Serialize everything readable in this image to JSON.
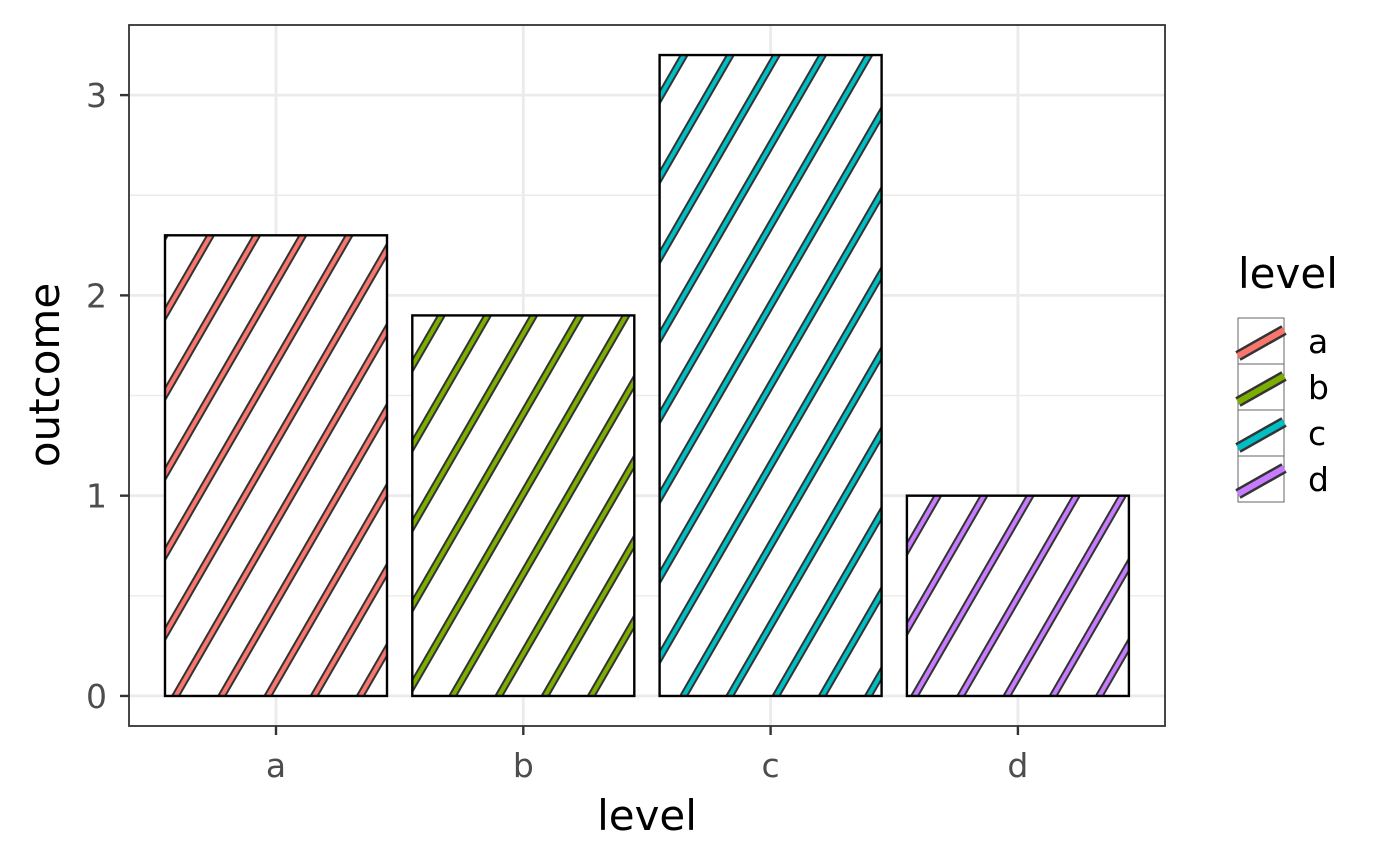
{
  "chart_data": {
    "type": "bar",
    "categories": [
      "a",
      "b",
      "c",
      "d"
    ],
    "values": [
      2.3,
      1.9,
      3.2,
      1.0
    ],
    "xlabel": "level",
    "ylabel": "outcome",
    "ylim": [
      -0.15,
      3.35
    ],
    "yticks": [
      0,
      1,
      2,
      3
    ],
    "grid": true,
    "pattern": "stripe",
    "legend": {
      "title": "level",
      "placement": "right",
      "entries": [
        "a",
        "b",
        "c",
        "d"
      ]
    },
    "colors": {
      "a": "#F8766D",
      "b": "#7CAE00",
      "c": "#00BFC4",
      "d": "#C77CFF"
    }
  }
}
